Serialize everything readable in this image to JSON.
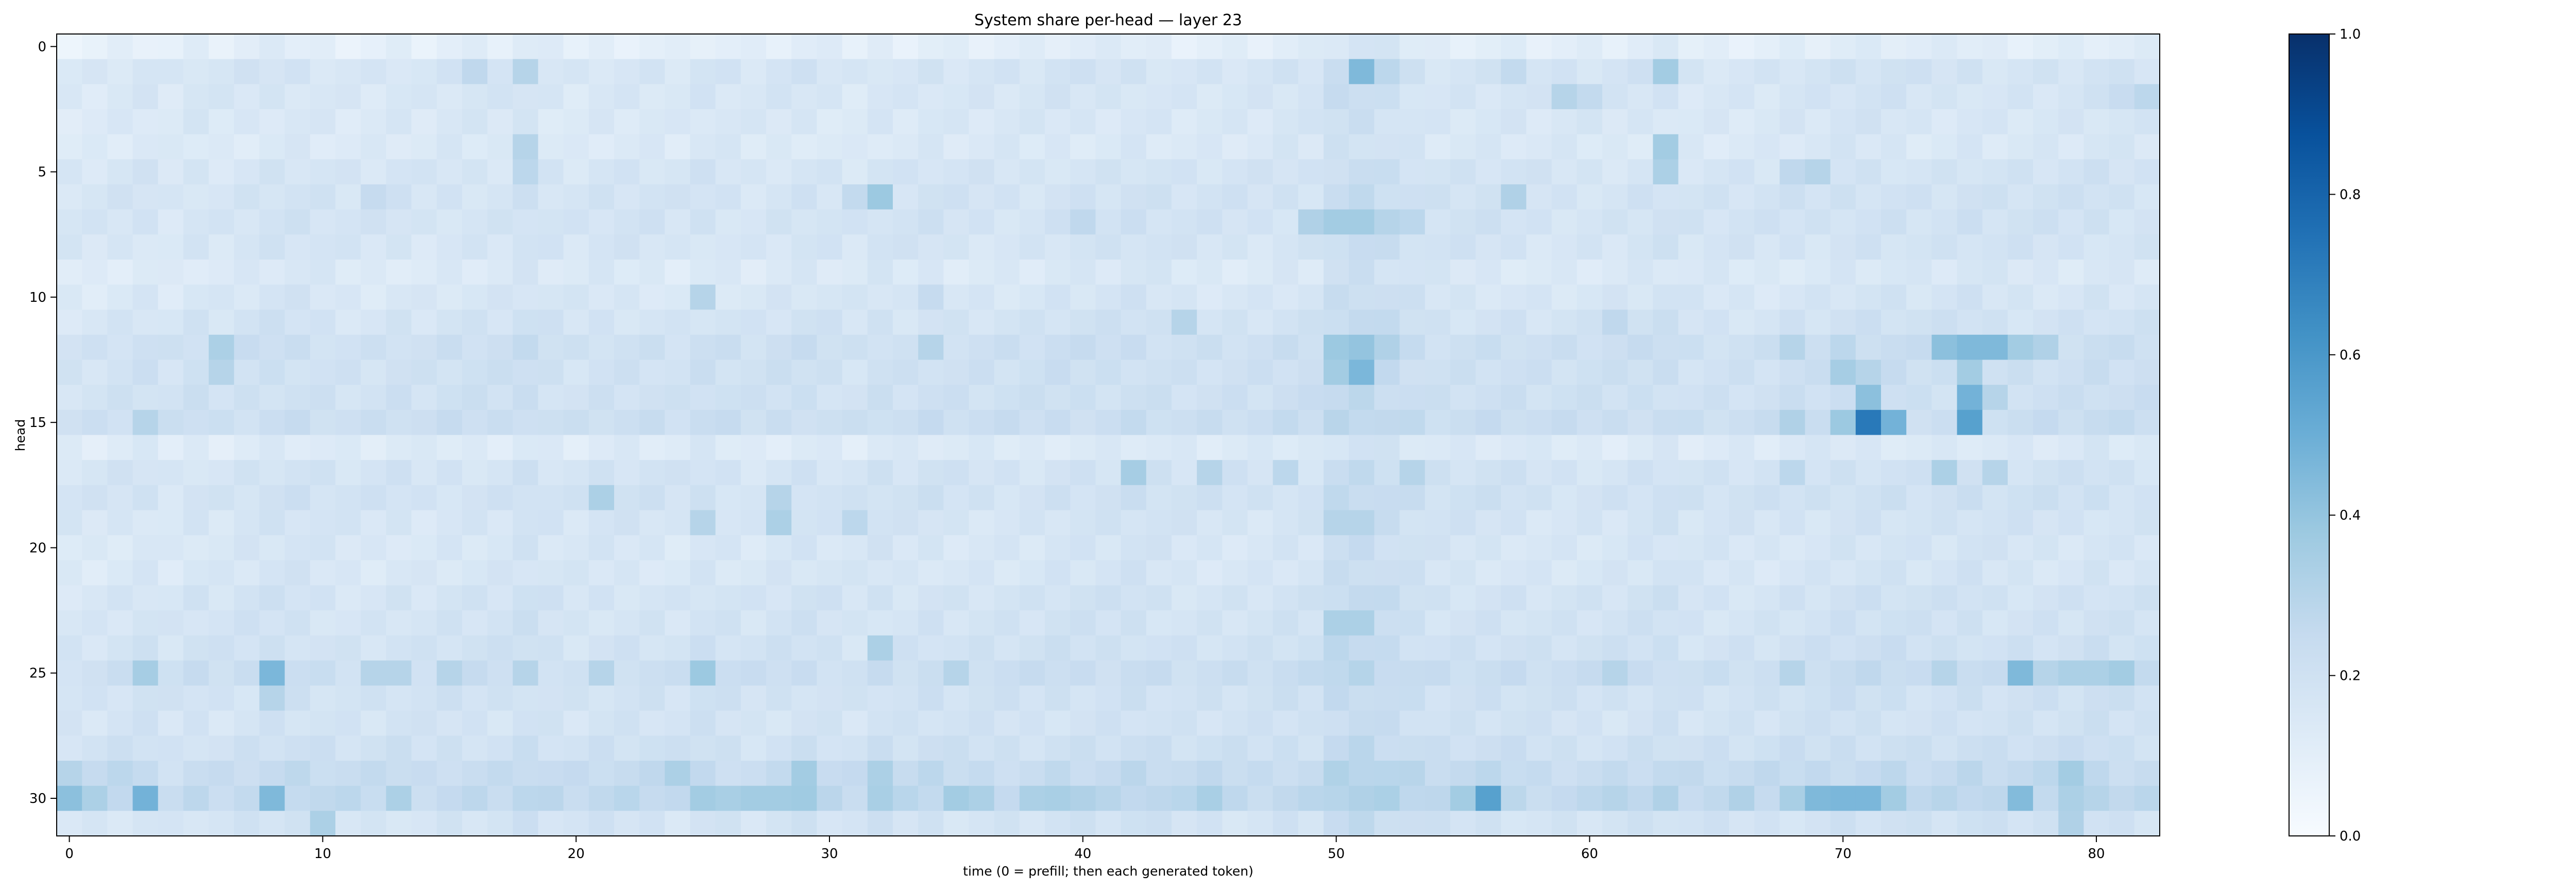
{
  "chart_data": {
    "type": "heatmap",
    "title": "System share per-head — layer 23",
    "xlabel": "time (0 = prefill; then each generated token)",
    "ylabel": "head",
    "x_range": [
      0,
      82
    ],
    "y_range": [
      0,
      31
    ],
    "x_ticks": [
      0,
      10,
      20,
      30,
      40,
      50,
      60,
      70,
      80
    ],
    "y_ticks": [
      0,
      5,
      10,
      15,
      20,
      25,
      30
    ],
    "colormap": "Blues",
    "colorbar": {
      "range": [
        0,
        1
      ],
      "ticks": [
        "0.0",
        "0.2",
        "0.4",
        "0.6",
        "0.8",
        "1.0"
      ]
    },
    "grid": false,
    "n_cols": 83,
    "n_rows": 32,
    "default_value": 0.14,
    "col_effect": [
      0.0,
      0.0,
      0.01,
      0.02,
      0.0,
      0.02,
      0.01,
      0.02,
      0.03,
      0.03,
      0.02,
      0.01,
      0.01,
      0.02,
      0.01,
      0.02,
      0.02,
      0.02,
      0.04,
      0.02,
      0.01,
      0.02,
      0.02,
      0.02,
      0.01,
      0.03,
      0.02,
      0.01,
      0.02,
      0.03,
      0.02,
      0.01,
      0.03,
      0.02,
      0.03,
      0.02,
      0.02,
      0.02,
      0.02,
      0.03,
      0.03,
      0.03,
      0.04,
      0.03,
      0.02,
      0.02,
      0.02,
      0.02,
      0.03,
      0.03,
      0.08,
      0.09,
      0.07,
      0.05,
      0.03,
      0.03,
      0.03,
      0.03,
      0.02,
      0.02,
      0.02,
      0.02,
      0.03,
      0.04,
      0.02,
      0.02,
      0.02,
      0.02,
      0.03,
      0.03,
      0.04,
      0.04,
      0.04,
      0.03,
      0.03,
      0.04,
      0.03,
      0.03,
      0.03,
      0.03,
      0.04,
      0.03,
      0.03
    ],
    "row_effect": [
      -0.06,
      0.01,
      0.0,
      -0.01,
      -0.02,
      0.01,
      0.02,
      0.02,
      0.01,
      -0.02,
      0.0,
      0.02,
      0.05,
      0.04,
      0.04,
      0.06,
      -0.03,
      0.02,
      0.03,
      0.01,
      0.0,
      0.0,
      0.02,
      0.02,
      0.03,
      0.06,
      0.03,
      0.02,
      0.04,
      0.08,
      0.1,
      0.02
    ],
    "highlights": [
      {
        "x": 51,
        "y": 1,
        "v": 0.45
      },
      {
        "x": 63,
        "y": 1,
        "v": 0.36
      },
      {
        "x": 52,
        "y": 1,
        "v": 0.28
      },
      {
        "x": 18,
        "y": 1,
        "v": 0.3
      },
      {
        "x": 16,
        "y": 1,
        "v": 0.27
      },
      {
        "x": 57,
        "y": 1,
        "v": 0.26
      },
      {
        "x": 59,
        "y": 2,
        "v": 0.3
      },
      {
        "x": 60,
        "y": 2,
        "v": 0.26
      },
      {
        "x": 82,
        "y": 2,
        "v": 0.28
      },
      {
        "x": 81,
        "y": 2,
        "v": 0.24
      },
      {
        "x": 18,
        "y": 4,
        "v": 0.3
      },
      {
        "x": 63,
        "y": 4,
        "v": 0.36
      },
      {
        "x": 63,
        "y": 5,
        "v": 0.33
      },
      {
        "x": 69,
        "y": 5,
        "v": 0.3
      },
      {
        "x": 68,
        "y": 5,
        "v": 0.27
      },
      {
        "x": 18,
        "y": 5,
        "v": 0.28
      },
      {
        "x": 32,
        "y": 6,
        "v": 0.38
      },
      {
        "x": 31,
        "y": 6,
        "v": 0.26
      },
      {
        "x": 57,
        "y": 6,
        "v": 0.32
      },
      {
        "x": 12,
        "y": 6,
        "v": 0.25
      },
      {
        "x": 49,
        "y": 7,
        "v": 0.32
      },
      {
        "x": 50,
        "y": 7,
        "v": 0.36
      },
      {
        "x": 51,
        "y": 7,
        "v": 0.36
      },
      {
        "x": 52,
        "y": 7,
        "v": 0.3
      },
      {
        "x": 53,
        "y": 7,
        "v": 0.28
      },
      {
        "x": 40,
        "y": 7,
        "v": 0.27
      },
      {
        "x": 25,
        "y": 10,
        "v": 0.3
      },
      {
        "x": 34,
        "y": 10,
        "v": 0.25
      },
      {
        "x": 44,
        "y": 11,
        "v": 0.3
      },
      {
        "x": 61,
        "y": 11,
        "v": 0.27
      },
      {
        "x": 6,
        "y": 12,
        "v": 0.33
      },
      {
        "x": 50,
        "y": 12,
        "v": 0.38
      },
      {
        "x": 51,
        "y": 12,
        "v": 0.4
      },
      {
        "x": 52,
        "y": 12,
        "v": 0.32
      },
      {
        "x": 74,
        "y": 12,
        "v": 0.42
      },
      {
        "x": 75,
        "y": 12,
        "v": 0.45
      },
      {
        "x": 76,
        "y": 12,
        "v": 0.45
      },
      {
        "x": 77,
        "y": 12,
        "v": 0.36
      },
      {
        "x": 78,
        "y": 12,
        "v": 0.32
      },
      {
        "x": 68,
        "y": 12,
        "v": 0.3
      },
      {
        "x": 70,
        "y": 12,
        "v": 0.28
      },
      {
        "x": 34,
        "y": 12,
        "v": 0.3
      },
      {
        "x": 51,
        "y": 13,
        "v": 0.46
      },
      {
        "x": 50,
        "y": 13,
        "v": 0.36
      },
      {
        "x": 70,
        "y": 13,
        "v": 0.35
      },
      {
        "x": 71,
        "y": 13,
        "v": 0.3
      },
      {
        "x": 75,
        "y": 13,
        "v": 0.36
      },
      {
        "x": 6,
        "y": 13,
        "v": 0.3
      },
      {
        "x": 71,
        "y": 14,
        "v": 0.42
      },
      {
        "x": 75,
        "y": 14,
        "v": 0.48
      },
      {
        "x": 76,
        "y": 14,
        "v": 0.3
      },
      {
        "x": 70,
        "y": 15,
        "v": 0.38
      },
      {
        "x": 71,
        "y": 15,
        "v": 0.72
      },
      {
        "x": 72,
        "y": 15,
        "v": 0.48
      },
      {
        "x": 75,
        "y": 15,
        "v": 0.56
      },
      {
        "x": 68,
        "y": 15,
        "v": 0.32
      },
      {
        "x": 3,
        "y": 15,
        "v": 0.3
      },
      {
        "x": 42,
        "y": 17,
        "v": 0.35
      },
      {
        "x": 45,
        "y": 17,
        "v": 0.3
      },
      {
        "x": 48,
        "y": 17,
        "v": 0.28
      },
      {
        "x": 53,
        "y": 17,
        "v": 0.3
      },
      {
        "x": 74,
        "y": 17,
        "v": 0.33
      },
      {
        "x": 76,
        "y": 17,
        "v": 0.3
      },
      {
        "x": 68,
        "y": 17,
        "v": 0.28
      },
      {
        "x": 21,
        "y": 18,
        "v": 0.33
      },
      {
        "x": 28,
        "y": 18,
        "v": 0.3
      },
      {
        "x": 25,
        "y": 19,
        "v": 0.3
      },
      {
        "x": 28,
        "y": 19,
        "v": 0.33
      },
      {
        "x": 31,
        "y": 19,
        "v": 0.28
      },
      {
        "x": 50,
        "y": 19,
        "v": 0.3
      },
      {
        "x": 51,
        "y": 19,
        "v": 0.3
      },
      {
        "x": 50,
        "y": 23,
        "v": 0.33
      },
      {
        "x": 51,
        "y": 23,
        "v": 0.33
      },
      {
        "x": 32,
        "y": 24,
        "v": 0.33
      },
      {
        "x": 3,
        "y": 25,
        "v": 0.35
      },
      {
        "x": 8,
        "y": 25,
        "v": 0.46
      },
      {
        "x": 12,
        "y": 25,
        "v": 0.3
      },
      {
        "x": 13,
        "y": 25,
        "v": 0.3
      },
      {
        "x": 15,
        "y": 25,
        "v": 0.3
      },
      {
        "x": 18,
        "y": 25,
        "v": 0.3
      },
      {
        "x": 25,
        "y": 25,
        "v": 0.38
      },
      {
        "x": 21,
        "y": 25,
        "v": 0.3
      },
      {
        "x": 35,
        "y": 25,
        "v": 0.3
      },
      {
        "x": 61,
        "y": 25,
        "v": 0.3
      },
      {
        "x": 68,
        "y": 25,
        "v": 0.3
      },
      {
        "x": 74,
        "y": 25,
        "v": 0.3
      },
      {
        "x": 77,
        "y": 25,
        "v": 0.45
      },
      {
        "x": 78,
        "y": 25,
        "v": 0.3
      },
      {
        "x": 79,
        "y": 25,
        "v": 0.33
      },
      {
        "x": 80,
        "y": 25,
        "v": 0.33
      },
      {
        "x": 81,
        "y": 25,
        "v": 0.36
      },
      {
        "x": 8,
        "y": 26,
        "v": 0.3
      },
      {
        "x": 0,
        "y": 29,
        "v": 0.3
      },
      {
        "x": 2,
        "y": 29,
        "v": 0.28
      },
      {
        "x": 24,
        "y": 29,
        "v": 0.33
      },
      {
        "x": 29,
        "y": 29,
        "v": 0.36
      },
      {
        "x": 32,
        "y": 29,
        "v": 0.33
      },
      {
        "x": 79,
        "y": 29,
        "v": 0.36
      },
      {
        "x": 0,
        "y": 30,
        "v": 0.42
      },
      {
        "x": 1,
        "y": 30,
        "v": 0.33
      },
      {
        "x": 3,
        "y": 30,
        "v": 0.48
      },
      {
        "x": 8,
        "y": 30,
        "v": 0.45
      },
      {
        "x": 13,
        "y": 30,
        "v": 0.33
      },
      {
        "x": 25,
        "y": 30,
        "v": 0.36
      },
      {
        "x": 26,
        "y": 30,
        "v": 0.34
      },
      {
        "x": 27,
        "y": 30,
        "v": 0.36
      },
      {
        "x": 28,
        "y": 30,
        "v": 0.36
      },
      {
        "x": 29,
        "y": 30,
        "v": 0.37
      },
      {
        "x": 32,
        "y": 30,
        "v": 0.34
      },
      {
        "x": 35,
        "y": 30,
        "v": 0.36
      },
      {
        "x": 36,
        "y": 30,
        "v": 0.33
      },
      {
        "x": 38,
        "y": 30,
        "v": 0.33
      },
      {
        "x": 39,
        "y": 30,
        "v": 0.34
      },
      {
        "x": 40,
        "y": 30,
        "v": 0.32
      },
      {
        "x": 45,
        "y": 30,
        "v": 0.34
      },
      {
        "x": 51,
        "y": 30,
        "v": 0.32
      },
      {
        "x": 55,
        "y": 30,
        "v": 0.36
      },
      {
        "x": 56,
        "y": 30,
        "v": 0.56
      },
      {
        "x": 61,
        "y": 30,
        "v": 0.3
      },
      {
        "x": 63,
        "y": 30,
        "v": 0.32
      },
      {
        "x": 66,
        "y": 30,
        "v": 0.32
      },
      {
        "x": 68,
        "y": 30,
        "v": 0.34
      },
      {
        "x": 69,
        "y": 30,
        "v": 0.45
      },
      {
        "x": 70,
        "y": 30,
        "v": 0.46
      },
      {
        "x": 71,
        "y": 30,
        "v": 0.46
      },
      {
        "x": 72,
        "y": 30,
        "v": 0.36
      },
      {
        "x": 77,
        "y": 30,
        "v": 0.44
      },
      {
        "x": 79,
        "y": 30,
        "v": 0.33
      },
      {
        "x": 80,
        "y": 30,
        "v": 0.3
      },
      {
        "x": 10,
        "y": 31,
        "v": 0.33
      },
      {
        "x": 79,
        "y": 31,
        "v": 0.32
      }
    ]
  }
}
